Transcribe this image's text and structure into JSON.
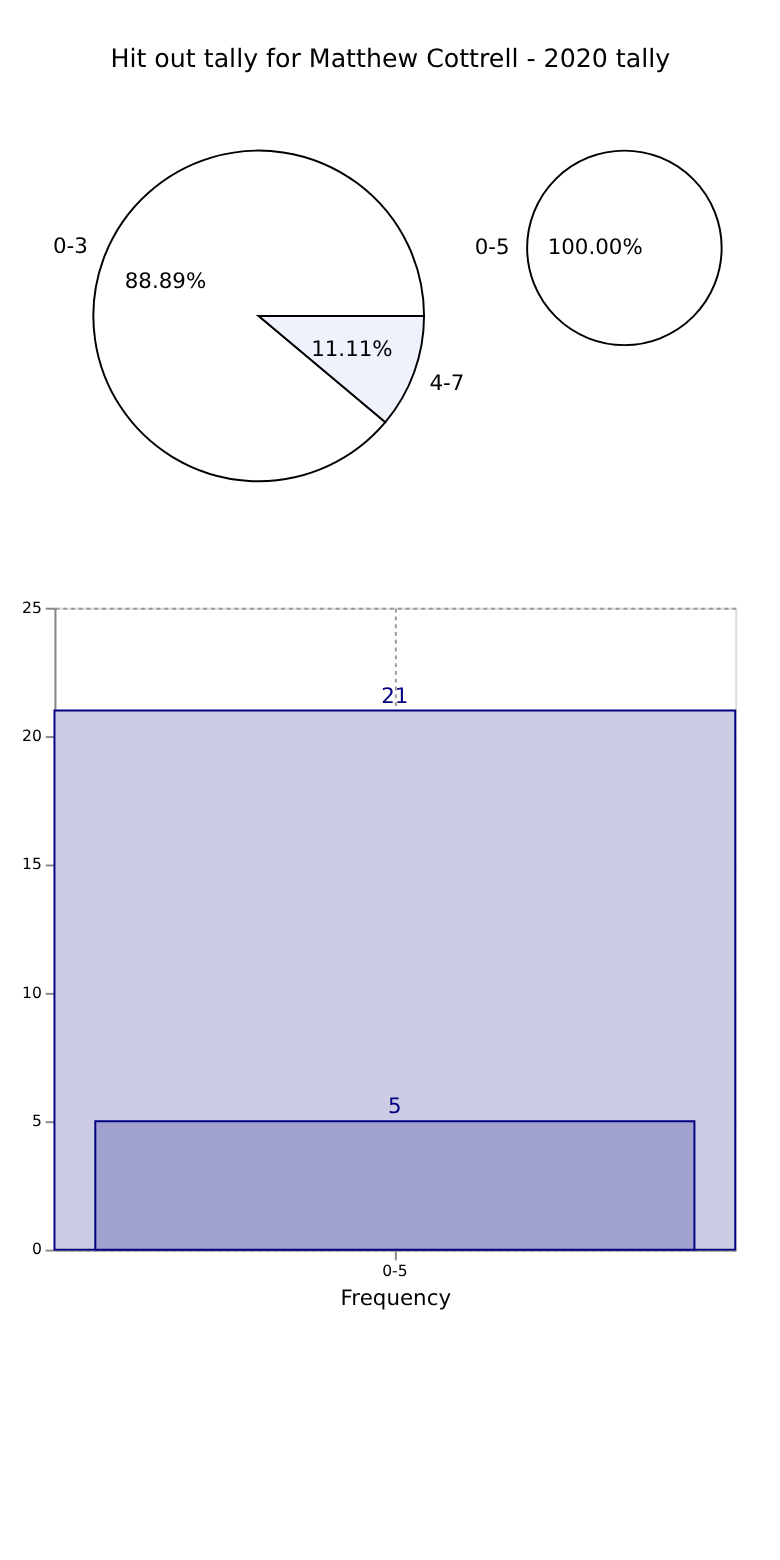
{
  "chart_data": [
    {
      "type": "pie",
      "title": "Hit out tally for Matthew Cottrell - 2020 tally",
      "categories": [
        "0-3",
        "4-7"
      ],
      "values": [
        88.89,
        11.11
      ],
      "colors": [
        "#ffffff",
        "#eef2fc"
      ],
      "value_labels": [
        "88.89%",
        "11.11%"
      ]
    },
    {
      "type": "pie",
      "categories": [
        "0-5"
      ],
      "values": [
        100
      ],
      "colors": [
        "#ffffff"
      ],
      "value_labels": [
        "100.00%"
      ]
    },
    {
      "type": "bar",
      "xlabel": "Frequency",
      "categories": [
        "0-5"
      ],
      "ylim": [
        0,
        25
      ],
      "yticks": [
        0,
        5,
        10,
        15,
        20,
        25
      ],
      "grid": true,
      "data_labels": true,
      "series": [
        {
          "color": "#cccce4",
          "values": [
            21
          ]
        },
        {
          "color": "#a2a2d0",
          "values": [
            5
          ]
        }
      ]
    }
  ]
}
